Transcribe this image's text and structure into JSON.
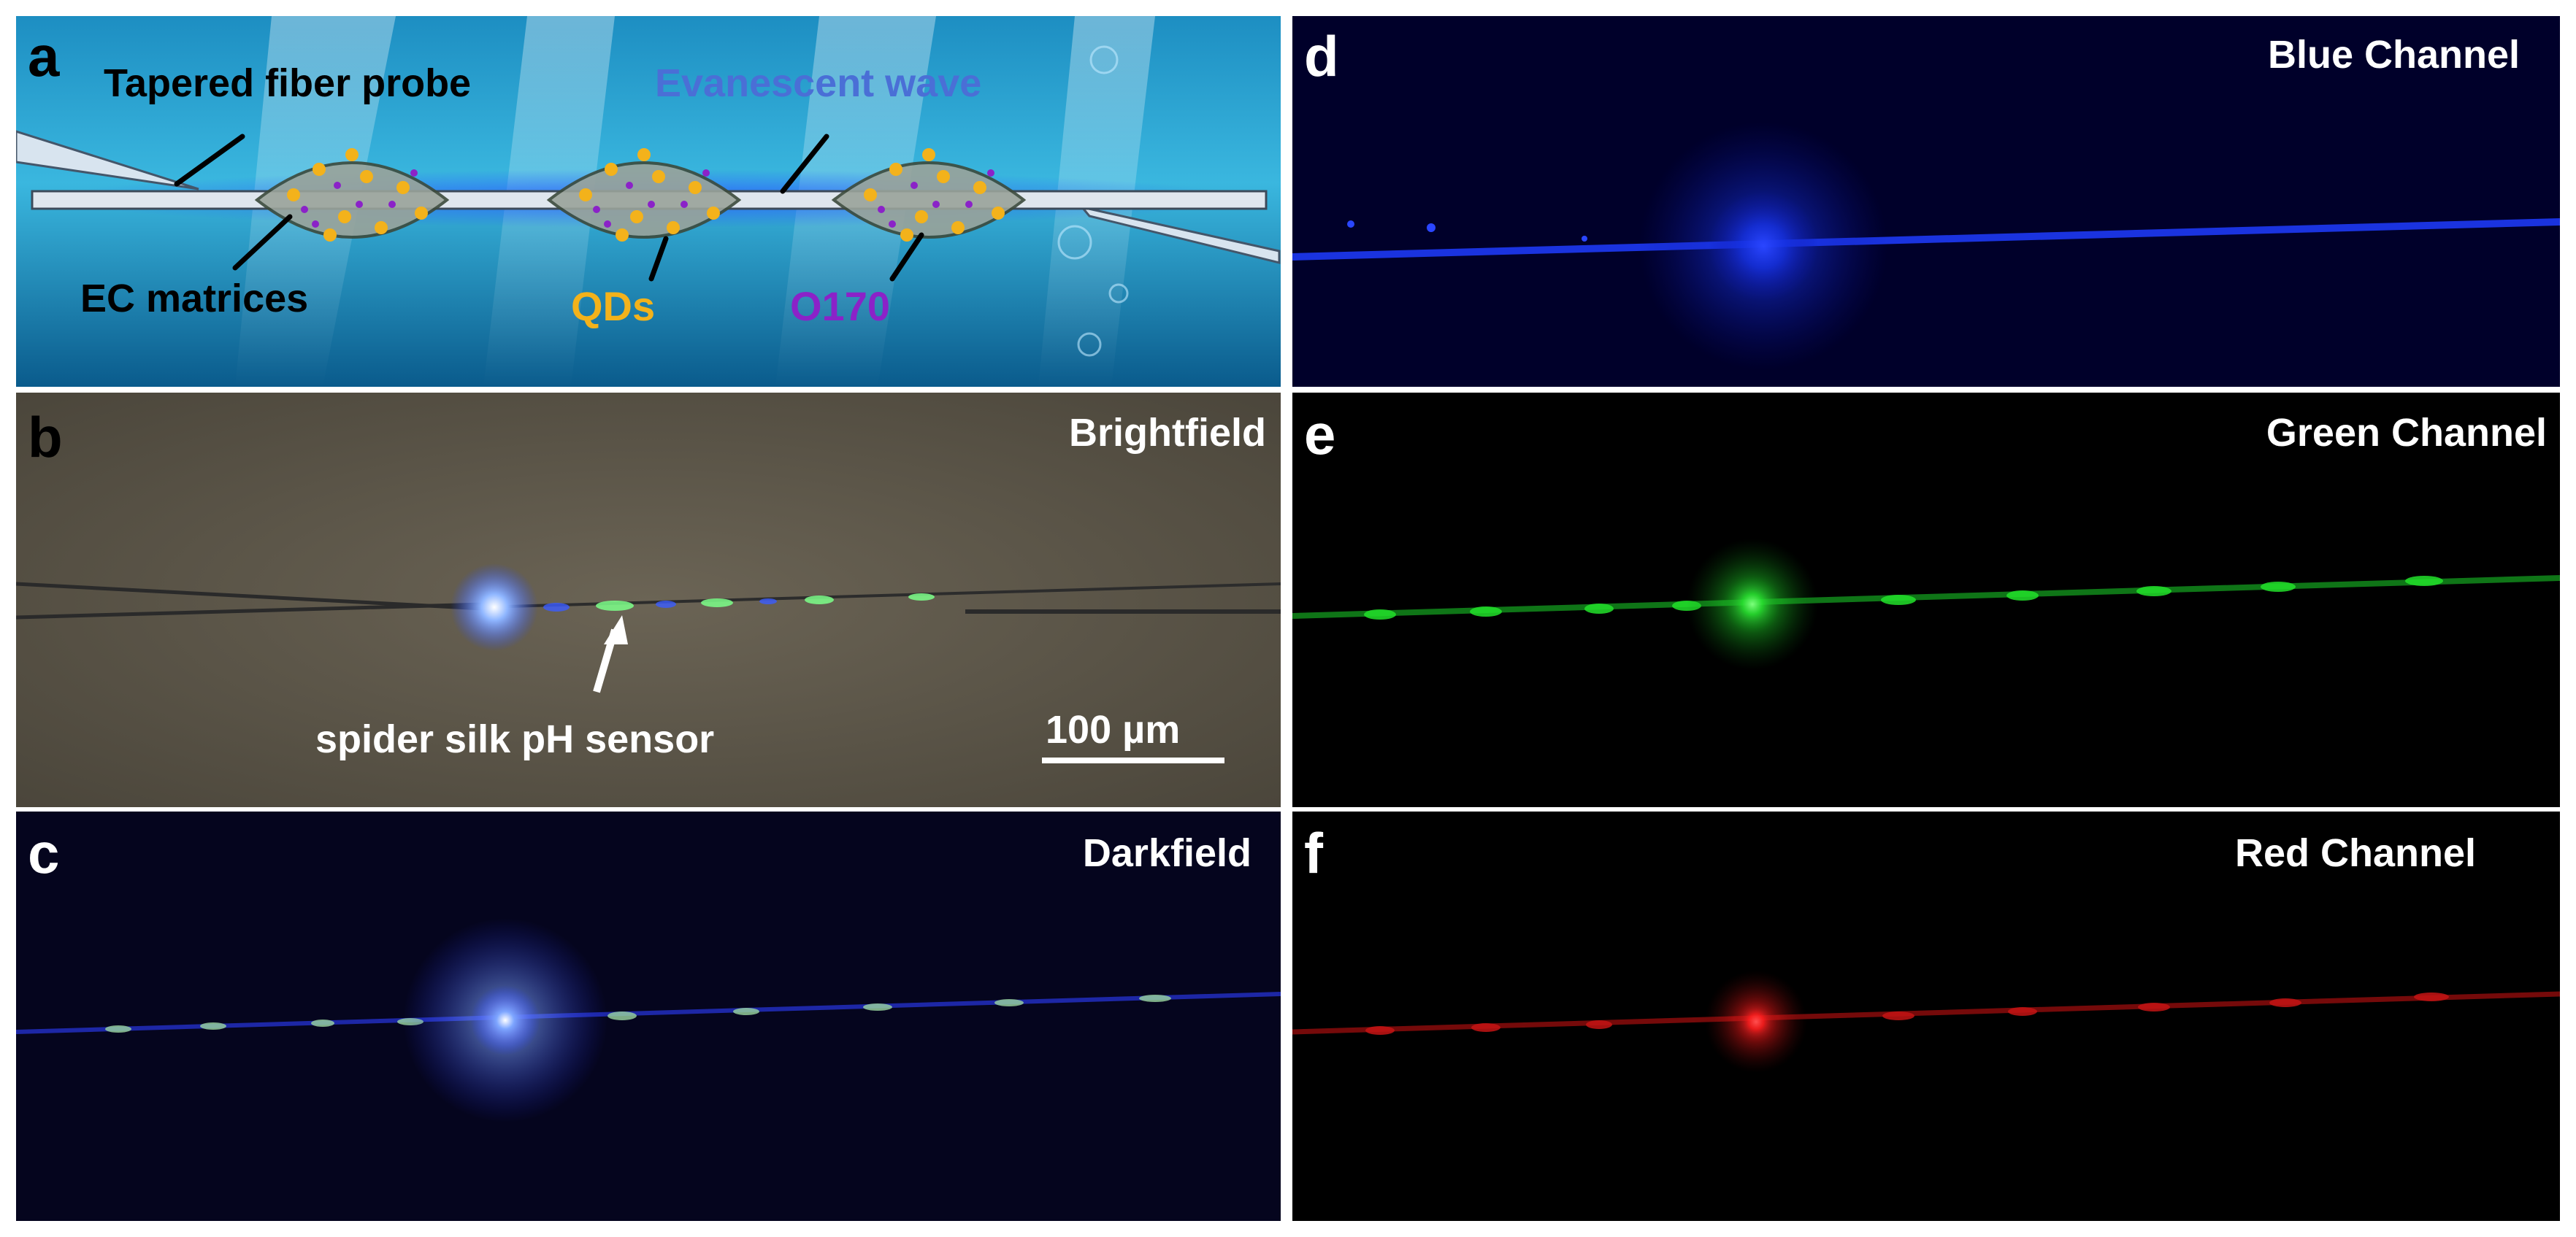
{
  "figure": {
    "panels": [
      {
        "id": "a",
        "letter": "a"
      },
      {
        "id": "b",
        "letter": "b",
        "title": "Brightfield"
      },
      {
        "id": "c",
        "letter": "c",
        "title": "Darkfield"
      },
      {
        "id": "d",
        "letter": "d",
        "title": "Blue Channel"
      },
      {
        "id": "e",
        "letter": "e",
        "title": "Green Channel"
      },
      {
        "id": "f",
        "letter": "f",
        "title": "Red Channel"
      }
    ],
    "schematic": {
      "tapered_fiber_probe": "Tapered fiber probe",
      "evanescent_wave": "Evanescent wave",
      "ec_matrices": "EC matrices",
      "qds": "QDs",
      "o170": "O170"
    },
    "brightfield": {
      "sensor_label": "spider silk pH sensor",
      "scale_bar": "100 µm"
    },
    "colors": {
      "qds": "#f3b21b",
      "o170": "#8b22c8",
      "evanescent_text": "#4a6fd6",
      "blue_channel": "#1f3dff",
      "green_channel": "#22e02a",
      "red_channel": "#ff1a1a"
    }
  }
}
